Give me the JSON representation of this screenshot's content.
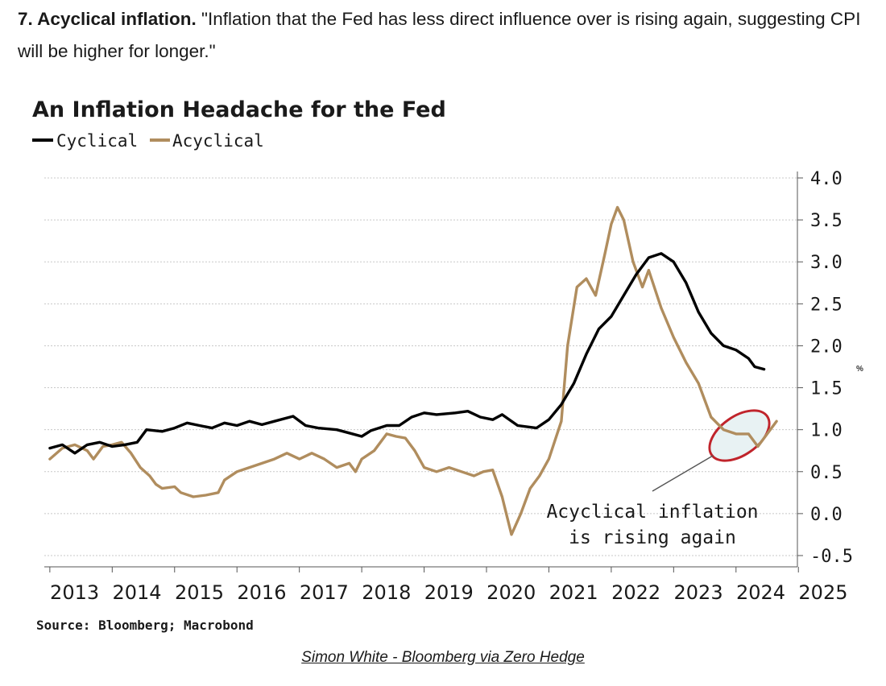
{
  "intro": {
    "heading": "7. Acyclical inflation.",
    "quote": " \"Inflation that the Fed has less direct influence over is rising again, suggesting CPI will be higher for longer.\""
  },
  "credit": {
    "text": "Simon White - Bloomberg via Zero Hedge"
  },
  "colors": {
    "cyclical": "#000000",
    "acyclical": "#b08d5e",
    "highlight_ring": "#c0242b",
    "highlight_fill": "#e8f2f3"
  },
  "chart_data": {
    "type": "line",
    "title": "An Inflation Headache for the Fed",
    "ylabel": "",
    "y_unit": "%",
    "ylim": [
      -0.5,
      4.0
    ],
    "yticks": [
      "4.0",
      "3.5",
      "3.0",
      "2.5",
      "2.0",
      "1.5",
      "1.0",
      "0.5",
      "0.0",
      "-0.5"
    ],
    "xticks": [
      "2013",
      "2014",
      "2015",
      "2016",
      "2017",
      "2018",
      "2019",
      "2020",
      "2021",
      "2022",
      "2023",
      "2024",
      "2025"
    ],
    "xlim": [
      2012.95,
      2024.7
    ],
    "grid": true,
    "legend_position": "top-left",
    "source": "Source: Bloomberg; Macrobond",
    "annotation": {
      "text": [
        "Acyclical inflation",
        "is rising again"
      ],
      "x": 2024.2,
      "y": 0.95
    },
    "series": [
      {
        "name": "Cyclical",
        "color": "#000000",
        "points": [
          [
            2013.0,
            0.78
          ],
          [
            2013.2,
            0.82
          ],
          [
            2013.4,
            0.72
          ],
          [
            2013.6,
            0.82
          ],
          [
            2013.8,
            0.85
          ],
          [
            2014.0,
            0.8
          ],
          [
            2014.2,
            0.82
          ],
          [
            2014.4,
            0.85
          ],
          [
            2014.55,
            1.0
          ],
          [
            2014.8,
            0.98
          ],
          [
            2015.0,
            1.02
          ],
          [
            2015.2,
            1.08
          ],
          [
            2015.4,
            1.05
          ],
          [
            2015.6,
            1.02
          ],
          [
            2015.8,
            1.08
          ],
          [
            2016.0,
            1.05
          ],
          [
            2016.2,
            1.1
          ],
          [
            2016.4,
            1.06
          ],
          [
            2016.6,
            1.1
          ],
          [
            2016.9,
            1.16
          ],
          [
            2017.1,
            1.05
          ],
          [
            2017.3,
            1.02
          ],
          [
            2017.6,
            1.0
          ],
          [
            2017.8,
            0.96
          ],
          [
            2018.0,
            0.92
          ],
          [
            2018.15,
            0.99
          ],
          [
            2018.4,
            1.05
          ],
          [
            2018.6,
            1.05
          ],
          [
            2018.8,
            1.15
          ],
          [
            2019.0,
            1.2
          ],
          [
            2019.2,
            1.18
          ],
          [
            2019.5,
            1.2
          ],
          [
            2019.7,
            1.22
          ],
          [
            2019.9,
            1.15
          ],
          [
            2020.1,
            1.12
          ],
          [
            2020.25,
            1.18
          ],
          [
            2020.5,
            1.05
          ],
          [
            2020.8,
            1.02
          ],
          [
            2021.0,
            1.12
          ],
          [
            2021.2,
            1.3
          ],
          [
            2021.4,
            1.55
          ],
          [
            2021.6,
            1.9
          ],
          [
            2021.8,
            2.2
          ],
          [
            2022.0,
            2.35
          ],
          [
            2022.2,
            2.6
          ],
          [
            2022.4,
            2.85
          ],
          [
            2022.6,
            3.05
          ],
          [
            2022.8,
            3.1
          ],
          [
            2023.0,
            3.0
          ],
          [
            2023.2,
            2.75
          ],
          [
            2023.4,
            2.4
          ],
          [
            2023.6,
            2.15
          ],
          [
            2023.8,
            2.0
          ],
          [
            2024.0,
            1.95
          ],
          [
            2024.2,
            1.85
          ],
          [
            2024.3,
            1.75
          ],
          [
            2024.45,
            1.72
          ]
        ]
      },
      {
        "name": "Acyclical",
        "color": "#b08d5e",
        "points": [
          [
            2013.0,
            0.65
          ],
          [
            2013.2,
            0.78
          ],
          [
            2013.4,
            0.82
          ],
          [
            2013.6,
            0.75
          ],
          [
            2013.7,
            0.65
          ],
          [
            2013.85,
            0.8
          ],
          [
            2014.0,
            0.82
          ],
          [
            2014.15,
            0.85
          ],
          [
            2014.3,
            0.72
          ],
          [
            2014.45,
            0.55
          ],
          [
            2014.6,
            0.45
          ],
          [
            2014.7,
            0.35
          ],
          [
            2014.8,
            0.3
          ],
          [
            2015.0,
            0.32
          ],
          [
            2015.1,
            0.25
          ],
          [
            2015.3,
            0.2
          ],
          [
            2015.5,
            0.22
          ],
          [
            2015.7,
            0.25
          ],
          [
            2015.8,
            0.4
          ],
          [
            2016.0,
            0.5
          ],
          [
            2016.2,
            0.55
          ],
          [
            2016.4,
            0.6
          ],
          [
            2016.6,
            0.65
          ],
          [
            2016.8,
            0.72
          ],
          [
            2017.0,
            0.65
          ],
          [
            2017.2,
            0.72
          ],
          [
            2017.4,
            0.65
          ],
          [
            2017.6,
            0.55
          ],
          [
            2017.8,
            0.6
          ],
          [
            2017.9,
            0.5
          ],
          [
            2018.0,
            0.65
          ],
          [
            2018.2,
            0.75
          ],
          [
            2018.4,
            0.95
          ],
          [
            2018.55,
            0.92
          ],
          [
            2018.7,
            0.9
          ],
          [
            2018.85,
            0.75
          ],
          [
            2019.0,
            0.55
          ],
          [
            2019.2,
            0.5
          ],
          [
            2019.4,
            0.55
          ],
          [
            2019.6,
            0.5
          ],
          [
            2019.8,
            0.45
          ],
          [
            2019.95,
            0.5
          ],
          [
            2020.1,
            0.52
          ],
          [
            2020.25,
            0.2
          ],
          [
            2020.4,
            -0.25
          ],
          [
            2020.55,
            0.0
          ],
          [
            2020.7,
            0.3
          ],
          [
            2020.85,
            0.45
          ],
          [
            2021.0,
            0.65
          ],
          [
            2021.2,
            1.1
          ],
          [
            2021.3,
            2.0
          ],
          [
            2021.45,
            2.7
          ],
          [
            2021.6,
            2.8
          ],
          [
            2021.75,
            2.6
          ],
          [
            2021.9,
            3.1
          ],
          [
            2022.0,
            3.45
          ],
          [
            2022.1,
            3.65
          ],
          [
            2022.2,
            3.5
          ],
          [
            2022.35,
            3.0
          ],
          [
            2022.5,
            2.7
          ],
          [
            2022.6,
            2.9
          ],
          [
            2022.8,
            2.45
          ],
          [
            2023.0,
            2.1
          ],
          [
            2023.2,
            1.8
          ],
          [
            2023.4,
            1.55
          ],
          [
            2023.6,
            1.15
          ],
          [
            2023.8,
            1.0
          ],
          [
            2024.0,
            0.95
          ],
          [
            2024.2,
            0.95
          ],
          [
            2024.35,
            0.8
          ],
          [
            2024.5,
            0.95
          ],
          [
            2024.65,
            1.1
          ]
        ]
      }
    ]
  }
}
